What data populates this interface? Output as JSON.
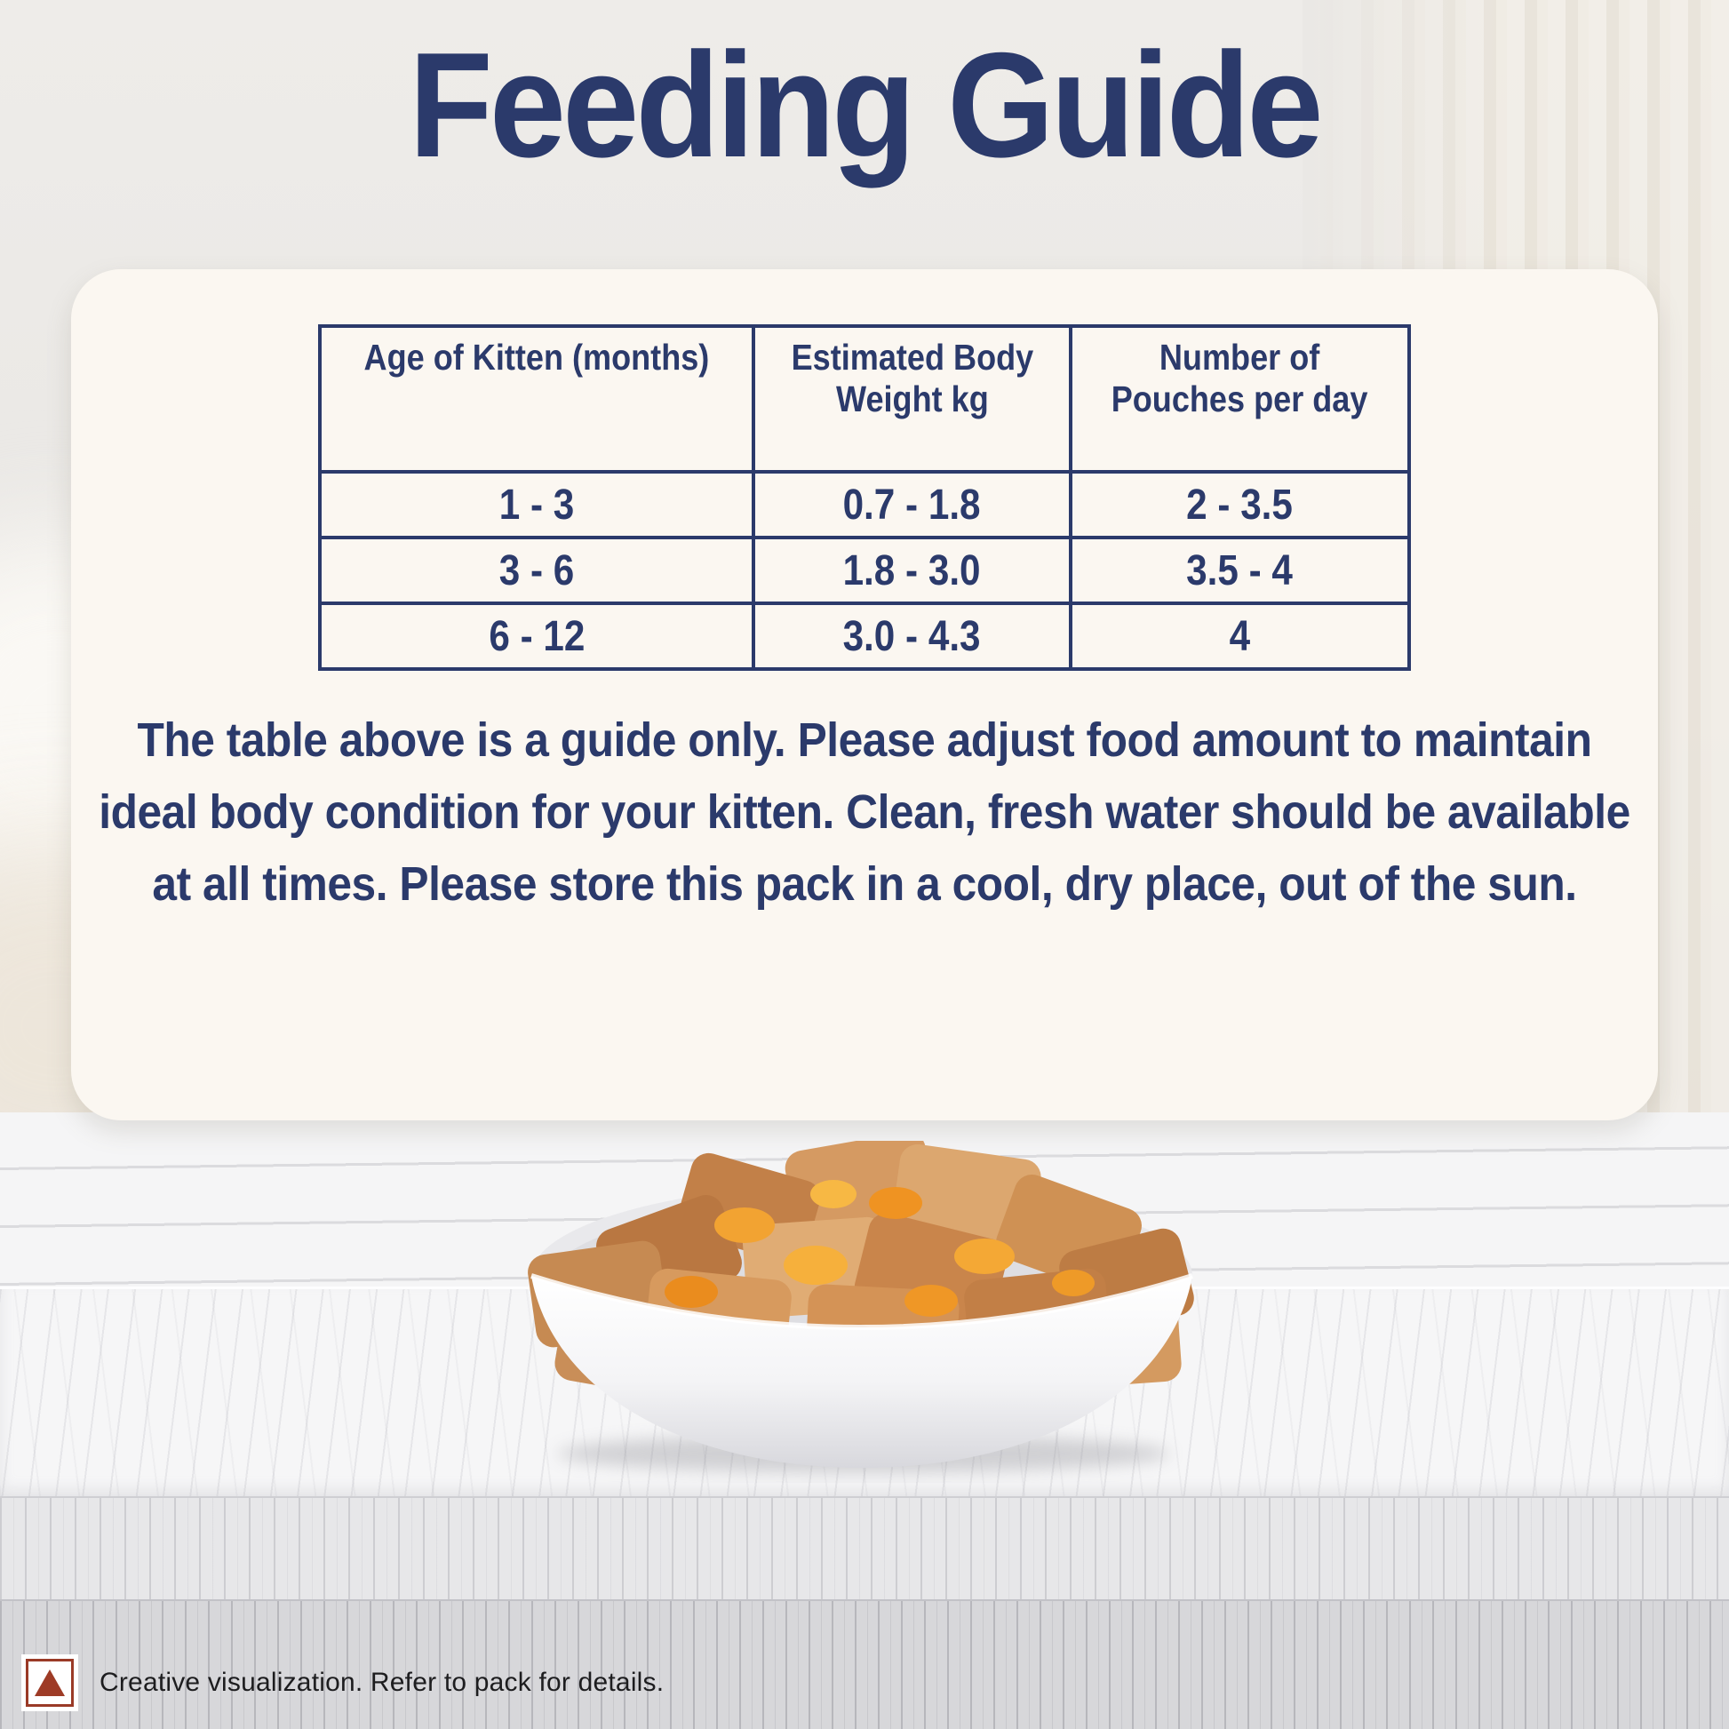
{
  "page": {
    "title": "Feeding Guide"
  },
  "card": {
    "table": {
      "columns": [
        "Age of Kitten (months)",
        "Estimated Body\nWeight kg",
        "Number of\nPouches per day"
      ],
      "rows": [
        [
          "1 - 3",
          "0.7 - 1.8",
          "2 - 3.5"
        ],
        [
          "3 - 6",
          "1.8 - 3.0",
          "3.5 - 4"
        ],
        [
          "6 - 12",
          "3.0 - 4.3",
          "4"
        ]
      ]
    },
    "note": "The table above is a guide only. Please adjust food amount to maintain ideal body condition for your kitten. Clean, fresh water should be available at all times. Please store this pack in a cool, dry place, out of the sun."
  },
  "disclaimer": {
    "icon": "nonveg-triangle-icon",
    "text": "Creative visualization. Refer to pack for details."
  },
  "colors": {
    "navy": "#2b3a6b",
    "card_bg": "#fbf7f1",
    "nonveg_brown": "#9a3a27",
    "gravy_orange": "#f09d2a",
    "food_tan": "#cf9053"
  }
}
